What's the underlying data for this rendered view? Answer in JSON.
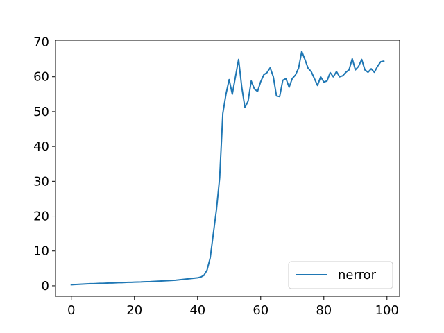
{
  "chart_data": {
    "type": "line",
    "title": "",
    "xlabel": "",
    "ylabel": "",
    "xlim": [
      -5,
      104
    ],
    "ylim": [
      -3,
      70.5
    ],
    "xticks": [
      0,
      20,
      40,
      60,
      80,
      100
    ],
    "yticks": [
      0,
      10,
      20,
      30,
      40,
      50,
      60,
      70
    ],
    "grid": false,
    "legend_position": "lower-right",
    "series": [
      {
        "name": "nerror",
        "color": "#1f77b4",
        "x": [
          0,
          1,
          2,
          3,
          4,
          5,
          6,
          7,
          8,
          9,
          10,
          11,
          12,
          13,
          14,
          15,
          16,
          17,
          18,
          19,
          20,
          21,
          22,
          23,
          24,
          25,
          26,
          27,
          28,
          29,
          30,
          31,
          32,
          33,
          34,
          35,
          36,
          37,
          38,
          39,
          40,
          41,
          42,
          43,
          44,
          45,
          46,
          47,
          48,
          49,
          50,
          51,
          52,
          53,
          54,
          55,
          56,
          57,
          58,
          59,
          60,
          61,
          62,
          63,
          64,
          65,
          66,
          67,
          68,
          69,
          70,
          71,
          72,
          73,
          74,
          75,
          76,
          77,
          78,
          79,
          80,
          81,
          82,
          83,
          84,
          85,
          86,
          87,
          88,
          89,
          90,
          91,
          92,
          93,
          94,
          95,
          96,
          97,
          98,
          99
        ],
        "y": [
          0.3,
          0.35,
          0.4,
          0.45,
          0.5,
          0.55,
          0.6,
          0.62,
          0.65,
          0.7,
          0.72,
          0.75,
          0.8,
          0.82,
          0.85,
          0.9,
          0.92,
          0.95,
          1.0,
          1.02,
          1.05,
          1.08,
          1.1,
          1.15,
          1.18,
          1.2,
          1.25,
          1.3,
          1.35,
          1.4,
          1.45,
          1.5,
          1.55,
          1.6,
          1.7,
          1.8,
          1.9,
          2.0,
          2.1,
          2.2,
          2.3,
          2.5,
          3.0,
          4.5,
          8.0,
          15.0,
          22.0,
          31.0,
          49.5,
          55.0,
          59.2,
          55.0,
          60.0,
          65.0,
          57.0,
          51.2,
          53.0,
          58.8,
          56.5,
          55.8,
          58.6,
          60.6,
          61.2,
          62.6,
          60.0,
          54.5,
          54.3,
          59.0,
          59.5,
          57.0,
          59.5,
          60.5,
          62.5,
          67.3,
          65.0,
          62.5,
          61.5,
          59.5,
          57.5,
          60.0,
          58.5,
          58.8,
          61.2,
          60.0,
          61.5,
          60.0,
          60.3,
          61.3,
          62.0,
          65.2,
          62.0,
          63.0,
          65.0,
          62.0,
          61.3,
          62.3,
          61.3,
          63.0,
          64.3,
          64.5
        ]
      }
    ]
  }
}
